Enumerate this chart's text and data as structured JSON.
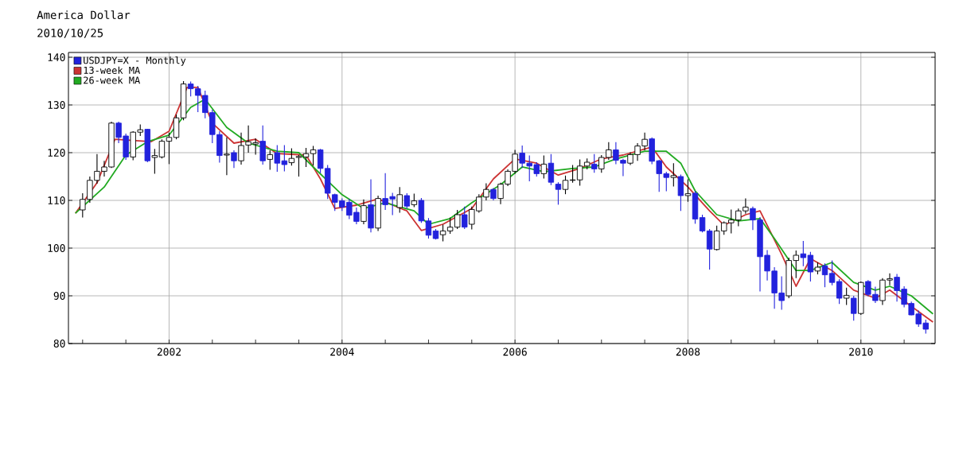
{
  "chart_data": {
    "type": "candlestick",
    "title": "America Dollar",
    "subtitle": "2010/10/25",
    "legend": "top left",
    "grid": true,
    "xlim": [
      "2000-11-02",
      "2010-11-10"
    ],
    "ylim": [
      80,
      141
    ],
    "yticks": [
      80,
      90,
      100,
      110,
      120,
      130,
      140
    ],
    "xticks": [
      {
        "value": "2001-01",
        "label": null
      },
      {
        "value": "2001-07",
        "label": null
      },
      {
        "value": "2002-01",
        "label": "2002"
      },
      {
        "value": "2002-07",
        "label": null
      },
      {
        "value": "2003-01",
        "label": null
      },
      {
        "value": "2003-07",
        "label": null
      },
      {
        "value": "2004-01",
        "label": "2004"
      },
      {
        "value": "2004-07",
        "label": null
      },
      {
        "value": "2005-01",
        "label": null
      },
      {
        "value": "2005-07",
        "label": null
      },
      {
        "value": "2006-01",
        "label": "2006"
      },
      {
        "value": "2006-07",
        "label": null
      },
      {
        "value": "2007-01",
        "label": null
      },
      {
        "value": "2007-07",
        "label": null
      },
      {
        "value": "2008-01",
        "label": "2008"
      },
      {
        "value": "2008-07",
        "label": null
      },
      {
        "value": "2009-01",
        "label": null
      },
      {
        "value": "2009-07",
        "label": null
      },
      {
        "value": "2010-01",
        "label": "2010"
      },
      {
        "value": "2010-07",
        "label": null
      }
    ],
    "series": [
      {
        "name": "USDJPY=X - Monthly",
        "type": "candlestick",
        "color": "#2222dd",
        "colors": [
          "#ffffff",
          "#ffffff",
          "#ffffff",
          "#ffffff",
          "#ffffff",
          "#2222dd",
          "#2222dd",
          "#ffffff",
          "#ffffff",
          "#2222dd",
          "#ffffff",
          "#ffffff",
          "#ffffff",
          "#ffffff",
          "#ffffff",
          "#2222dd",
          "#2222dd",
          "#2222dd",
          "#2222dd",
          "#2222dd",
          "#ffffff",
          "#2222dd",
          "#ffffff",
          "#ffffff",
          "#ffffff",
          "#2222dd",
          "#ffffff",
          "#2222dd",
          "#2222dd",
          "#ffffff",
          "#ffffff",
          "#ffffff",
          "#ffffff",
          "#2222dd",
          "#2222dd",
          "#2222dd",
          "#2222dd",
          "#2222dd",
          "#2222dd",
          "#ffffff",
          "#2222dd",
          "#ffffff",
          "#2222dd",
          "#2222dd",
          "#ffffff",
          "#2222dd",
          "#ffffff",
          "#2222dd",
          "#2222dd",
          "#2222dd",
          "#ffffff",
          "#ffffff",
          "#ffffff",
          "#2222dd",
          "#ffffff",
          "#ffffff",
          "#ffffff",
          "#2222dd",
          "#ffffff",
          "#ffffff",
          "#ffffff",
          "#2222dd",
          "#2222dd",
          "#2222dd",
          "#ffffff",
          "#2222dd",
          "#2222dd",
          "#ffffff",
          "#ffffff",
          "#ffffff",
          "#ffffff",
          "#2222dd",
          "#ffffff",
          "#ffffff",
          "#2222dd",
          "#2222dd",
          "#ffffff",
          "#ffffff",
          "#ffffff",
          "#2222dd",
          "#2222dd",
          "#2222dd",
          "#ffffff",
          "#2222dd",
          "#ffffff",
          "#2222dd",
          "#2222dd",
          "#2222dd",
          "#ffffff",
          "#ffffff",
          "#ffffff",
          "#ffffff",
          "#ffffff",
          "#2222dd",
          "#2222dd",
          "#2222dd",
          "#2222dd",
          "#2222dd",
          "#ffffff",
          "#ffffff",
          "#2222dd",
          "#2222dd",
          "#ffffff",
          "#2222dd",
          "#2222dd",
          "#2222dd",
          "#ffffff",
          "#2222dd",
          "#ffffff",
          "#2222dd",
          "#2222dd",
          "#ffffff",
          "#ffffff",
          "#2222dd",
          "#2222dd",
          "#2222dd",
          "#2222dd",
          "#2222dd"
        ],
        "x": [
          "2001-01",
          "2001-02",
          "2001-03",
          "2001-04",
          "2001-05",
          "2001-06",
          "2001-07",
          "2001-08",
          "2001-09",
          "2001-10",
          "2001-11",
          "2001-12",
          "2002-01",
          "2002-02",
          "2002-03",
          "2002-04",
          "2002-05",
          "2002-06",
          "2002-07",
          "2002-08",
          "2002-09",
          "2002-10",
          "2002-11",
          "2002-12",
          "2003-01",
          "2003-02",
          "2003-03",
          "2003-04",
          "2003-05",
          "2003-06",
          "2003-07",
          "2003-08",
          "2003-09",
          "2003-10",
          "2003-11",
          "2003-12",
          "2004-01",
          "2004-02",
          "2004-03",
          "2004-04",
          "2004-05",
          "2004-06",
          "2004-07",
          "2004-08",
          "2004-09",
          "2004-10",
          "2004-11",
          "2004-12",
          "2005-01",
          "2005-02",
          "2005-03",
          "2005-04",
          "2005-05",
          "2005-06",
          "2005-07",
          "2005-08",
          "2005-09",
          "2005-10",
          "2005-11",
          "2005-12",
          "2006-01",
          "2006-02",
          "2006-03",
          "2006-04",
          "2006-05",
          "2006-06",
          "2006-07",
          "2006-08",
          "2006-09",
          "2006-10",
          "2006-11",
          "2006-12",
          "2007-01",
          "2007-02",
          "2007-03",
          "2007-04",
          "2007-05",
          "2007-06",
          "2007-07",
          "2007-08",
          "2007-09",
          "2007-10",
          "2007-11",
          "2007-12",
          "2008-01",
          "2008-02",
          "2008-03",
          "2008-04",
          "2008-05",
          "2008-06",
          "2008-07",
          "2008-08",
          "2008-09",
          "2008-10",
          "2008-11",
          "2008-12",
          "2009-01",
          "2009-02",
          "2009-03",
          "2009-04",
          "2009-05",
          "2009-06",
          "2009-07",
          "2009-08",
          "2009-09",
          "2009-10",
          "2009-11",
          "2009-12",
          "2010-01",
          "2010-02",
          "2010-03",
          "2010-04",
          "2010-05",
          "2010-06",
          "2010-07",
          "2010-08",
          "2010-09",
          "2010-10"
        ],
        "ohlc": [
          [
            108.0,
            111.5,
            106.4,
            110.2
          ],
          [
            110.2,
            115.0,
            109.5,
            114.2
          ],
          [
            114.2,
            119.7,
            113.5,
            116.1
          ],
          [
            116.1,
            118.3,
            115.0,
            117.0
          ],
          [
            117.0,
            126.5,
            116.8,
            126.2
          ],
          [
            126.2,
            126.5,
            122.0,
            123.2
          ],
          [
            123.5,
            124.0,
            118.5,
            119.1
          ],
          [
            119.1,
            124.5,
            118.4,
            124.3
          ],
          [
            124.3,
            125.9,
            123.5,
            124.8
          ],
          [
            124.9,
            125.0,
            118.0,
            118.3
          ],
          [
            119.0,
            120.8,
            115.6,
            119.4
          ],
          [
            119.1,
            122.8,
            118.8,
            122.4
          ],
          [
            122.4,
            124.2,
            117.6,
            123.2
          ],
          [
            123.2,
            128.0,
            122.8,
            127.3
          ],
          [
            127.3,
            135.0,
            126.8,
            134.4
          ],
          [
            134.4,
            134.9,
            131.8,
            133.4
          ],
          [
            133.4,
            134.0,
            128.5,
            132.0
          ],
          [
            132.0,
            133.0,
            127.2,
            128.4
          ],
          [
            128.4,
            129.0,
            122.0,
            123.8
          ],
          [
            123.8,
            124.5,
            117.9,
            119.4
          ],
          [
            119.5,
            123.2,
            115.3,
            119.7
          ],
          [
            120.0,
            120.5,
            116.8,
            118.3
          ],
          [
            118.3,
            124.2,
            117.5,
            121.5
          ],
          [
            121.6,
            125.7,
            120.0,
            122.3
          ],
          [
            121.8,
            123.0,
            119.6,
            122.1
          ],
          [
            122.4,
            125.7,
            117.5,
            118.3
          ],
          [
            118.6,
            120.5,
            116.4,
            119.6
          ],
          [
            120.0,
            121.6,
            116.0,
            117.8
          ],
          [
            118.3,
            121.6,
            116.1,
            117.5
          ],
          [
            117.9,
            120.9,
            117.3,
            118.8
          ],
          [
            119.0,
            119.5,
            115.0,
            119.2
          ],
          [
            119.1,
            121.0,
            117.0,
            119.8
          ],
          [
            119.8,
            121.4,
            117.3,
            120.6
          ],
          [
            120.6,
            120.8,
            115.7,
            116.7
          ],
          [
            116.7,
            117.4,
            110.3,
            111.5
          ],
          [
            111.2,
            111.4,
            107.8,
            109.6
          ],
          [
            109.9,
            110.4,
            107.8,
            108.6
          ],
          [
            109.6,
            110.3,
            106.1,
            106.9
          ],
          [
            107.5,
            108.5,
            105.0,
            105.6
          ],
          [
            105.6,
            110.2,
            105.0,
            108.9
          ],
          [
            109.1,
            114.4,
            103.3,
            104.2
          ],
          [
            104.2,
            111.0,
            103.6,
            110.4
          ],
          [
            110.4,
            115.7,
            108.0,
            109.1
          ],
          [
            110.8,
            111.6,
            106.9,
            110.3
          ],
          [
            108.5,
            112.8,
            107.4,
            111.2
          ],
          [
            111.0,
            111.5,
            108.3,
            108.8
          ],
          [
            109.1,
            111.4,
            108.6,
            109.9
          ],
          [
            110.0,
            110.5,
            105.3,
            105.7
          ],
          [
            105.7,
            106.3,
            102.0,
            102.7
          ],
          [
            103.6,
            104.0,
            101.8,
            102.0
          ],
          [
            102.8,
            104.9,
            101.4,
            103.6
          ],
          [
            103.6,
            106.4,
            103.0,
            104.4
          ],
          [
            104.4,
            108.0,
            104.0,
            107.0
          ],
          [
            107.0,
            108.7,
            104.0,
            104.4
          ],
          [
            105.0,
            108.7,
            103.9,
            108.1
          ],
          [
            107.8,
            111.3,
            107.4,
            110.7
          ],
          [
            110.7,
            113.6,
            110.0,
            112.3
          ],
          [
            112.3,
            112.6,
            110.0,
            110.4
          ],
          [
            110.4,
            113.7,
            109.2,
            113.4
          ],
          [
            113.4,
            116.5,
            113.0,
            116.1
          ],
          [
            116.1,
            120.6,
            115.6,
            119.7
          ],
          [
            119.9,
            121.5,
            116.8,
            117.8
          ],
          [
            117.8,
            119.4,
            114.0,
            117.2
          ],
          [
            117.5,
            118.0,
            115.0,
            115.6
          ],
          [
            115.6,
            119.4,
            114.6,
            117.6
          ],
          [
            117.8,
            119.7,
            113.2,
            113.8
          ],
          [
            113.4,
            113.8,
            109.1,
            112.3
          ],
          [
            112.3,
            115.2,
            111.3,
            114.2
          ],
          [
            114.2,
            117.4,
            113.7,
            114.3
          ],
          [
            114.3,
            118.6,
            113.1,
            117.2
          ],
          [
            117.2,
            118.8,
            116.5,
            118.0
          ],
          [
            117.6,
            119.7,
            115.8,
            116.6
          ],
          [
            116.6,
            119.5,
            115.8,
            119.0
          ],
          [
            119.0,
            122.2,
            118.5,
            120.6
          ],
          [
            120.6,
            122.2,
            117.6,
            118.4
          ],
          [
            118.4,
            118.7,
            115.1,
            117.8
          ],
          [
            117.8,
            120.1,
            117.4,
            119.6
          ],
          [
            119.6,
            122.0,
            118.3,
            121.4
          ],
          [
            121.4,
            124.2,
            120.5,
            122.8
          ],
          [
            122.9,
            123.2,
            117.6,
            118.2
          ],
          [
            118.3,
            118.5,
            111.8,
            115.6
          ],
          [
            115.6,
            116.0,
            111.9,
            114.8
          ],
          [
            114.8,
            117.8,
            112.9,
            115.2
          ],
          [
            115.0,
            115.4,
            107.8,
            111.0
          ],
          [
            111.0,
            114.4,
            109.7,
            111.4
          ],
          [
            111.5,
            112.0,
            105.1,
            106.1
          ],
          [
            106.4,
            107.0,
            103.3,
            103.6
          ],
          [
            103.6,
            104.0,
            95.5,
            99.8
          ],
          [
            99.7,
            104.7,
            99.5,
            103.6
          ],
          [
            103.6,
            105.6,
            102.8,
            105.3
          ],
          [
            105.3,
            108.1,
            103.1,
            105.9
          ],
          [
            105.9,
            108.3,
            104.6,
            107.8
          ],
          [
            107.8,
            110.4,
            107.2,
            108.6
          ],
          [
            108.3,
            108.7,
            103.8,
            105.9
          ],
          [
            105.9,
            106.5,
            90.9,
            98.2
          ],
          [
            98.5,
            99.6,
            93.2,
            95.2
          ],
          [
            95.2,
            96.0,
            87.3,
            90.6
          ],
          [
            90.6,
            94.1,
            87.1,
            89.0
          ],
          [
            90.0,
            98.0,
            89.5,
            97.4
          ],
          [
            97.4,
            99.5,
            93.7,
            98.5
          ],
          [
            98.8,
            101.5,
            96.2,
            98.0
          ],
          [
            98.5,
            99.2,
            93.0,
            95.0
          ],
          [
            95.2,
            97.0,
            94.5,
            96.0
          ],
          [
            96.3,
            96.8,
            91.8,
            94.4
          ],
          [
            94.7,
            97.4,
            92.2,
            92.8
          ],
          [
            93.0,
            93.5,
            88.3,
            89.5
          ],
          [
            89.5,
            91.7,
            88.1,
            90.1
          ],
          [
            89.5,
            90.0,
            84.8,
            86.3
          ],
          [
            86.3,
            93.0,
            86.0,
            92.8
          ],
          [
            93.0,
            93.3,
            89.9,
            90.3
          ],
          [
            90.3,
            91.9,
            88.5,
            89.0
          ],
          [
            89.0,
            93.7,
            88.1,
            93.3
          ],
          [
            93.3,
            94.7,
            92.2,
            93.6
          ],
          [
            93.9,
            94.6,
            88.8,
            91.1
          ],
          [
            91.4,
            92.0,
            87.6,
            88.2
          ],
          [
            88.4,
            88.8,
            85.9,
            86.0
          ],
          [
            86.2,
            86.9,
            83.5,
            84.1
          ],
          [
            84.3,
            85.0,
            82.1,
            83.0
          ]
        ]
      },
      {
        "name": "13-week MA",
        "type": "line",
        "color": "#cc3333",
        "x": [
          "2000-12",
          "2001-03",
          "2001-05-16",
          "2001-10-16",
          "2002-01",
          "2002-03-16",
          "2002-05",
          "2002-07",
          "2002-10",
          "2003-01",
          "2003-04",
          "2003-08",
          "2003-10",
          "2003-12",
          "2004-03",
          "2004-06",
          "2004-10",
          "2004-12",
          "2005-03",
          "2005-07",
          "2005-10",
          "2006-01",
          "2006-04",
          "2006-07",
          "2006-10",
          "2007-01",
          "2007-04",
          "2007-08",
          "2007-10",
          "2008-01",
          "2008-04",
          "2008-06",
          "2008-09",
          "2008-11",
          "2009-02",
          "2009-04",
          "2009-06",
          "2009-09",
          "2009-12",
          "2010-03",
          "2010-05",
          "2010-08",
          "2010-11"
        ],
        "values": [
          107.3,
          113.7,
          122.8,
          122.3,
          124.5,
          133.7,
          133.7,
          126.2,
          122.0,
          122.8,
          119.8,
          119.5,
          114.5,
          108.3,
          109.0,
          110.3,
          107.8,
          103.7,
          105.0,
          108.3,
          114.5,
          118.7,
          117.8,
          115.3,
          116.7,
          118.7,
          119.5,
          121.2,
          117.0,
          112.8,
          107.8,
          104.8,
          107.0,
          107.8,
          98.7,
          92.0,
          97.8,
          95.3,
          91.2,
          89.5,
          91.2,
          87.8,
          84.5
        ]
      },
      {
        "name": "26-week MA",
        "type": "line",
        "color": "#22aa22",
        "x": [
          "2000-12",
          "2001-04",
          "2001-07",
          "2001-10",
          "2002-01",
          "2002-04",
          "2002-06",
          "2002-09",
          "2002-12",
          "2003-04",
          "2003-07",
          "2003-09",
          "2004-01",
          "2004-04",
          "2004-07",
          "2004-11",
          "2005-01",
          "2005-04",
          "2005-07",
          "2005-11",
          "2006-02",
          "2006-05",
          "2006-09",
          "2006-12",
          "2007-03",
          "2007-07",
          "2007-10",
          "2007-12",
          "2008-02",
          "2008-05",
          "2008-08",
          "2008-11",
          "2009-01",
          "2009-04",
          "2009-06",
          "2009-09",
          "2009-12",
          "2010-03",
          "2010-05",
          "2010-08",
          "2010-11"
        ],
        "values": [
          107.3,
          112.8,
          119.5,
          122.3,
          123.7,
          129.5,
          131.2,
          125.3,
          122.0,
          120.3,
          120.0,
          117.0,
          111.2,
          108.3,
          109.5,
          107.8,
          105.0,
          106.2,
          109.5,
          113.3,
          117.0,
          116.0,
          116.7,
          117.0,
          118.7,
          120.3,
          120.3,
          117.8,
          112.0,
          107.0,
          105.7,
          106.2,
          102.0,
          95.3,
          95.3,
          97.0,
          92.8,
          91.2,
          92.0,
          90.0,
          86.2
        ]
      }
    ]
  }
}
